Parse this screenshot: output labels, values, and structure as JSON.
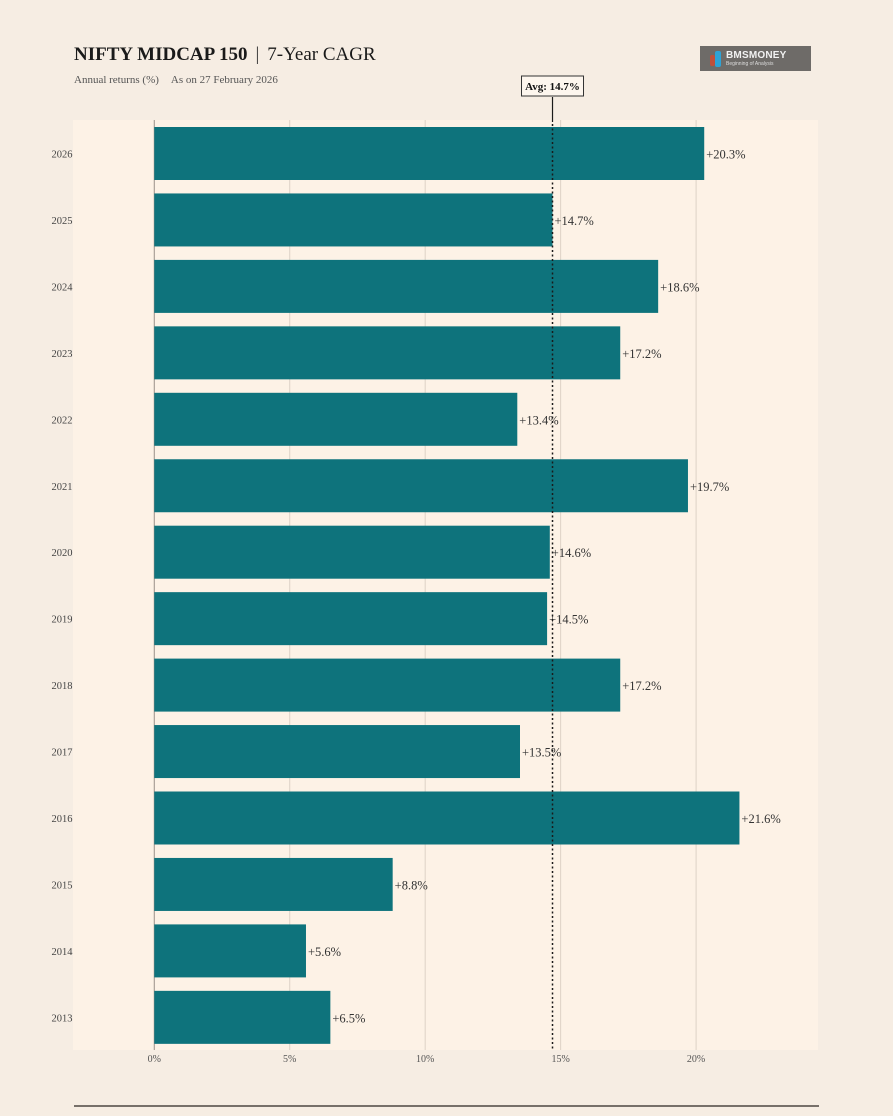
{
  "header": {
    "title_bold": "NIFTY MIDCAP 150",
    "title_separator": "|",
    "title_rest": "7-Year CAGR",
    "subtitle_left": "Annual returns (%)",
    "subtitle_right": "As on 27 February 2026"
  },
  "logo": {
    "name": "BMSMONEY",
    "tagline": "Beginning of Analysis"
  },
  "colors": {
    "bar": "#0e737c",
    "plot_bg": "#fdf2e6",
    "page_bg": "#f6ede3",
    "grid": "#ddd2c6",
    "avg_line": "#1a1a1a"
  },
  "chart_data": {
    "type": "bar",
    "orientation": "horizontal",
    "title": "NIFTY MIDCAP 150 | 7-Year CAGR",
    "subtitle": "Annual returns (%)  As on 27 February 2026",
    "xlabel": "",
    "ylabel": "",
    "categories": [
      "2026",
      "2025",
      "2024",
      "2023",
      "2022",
      "2021",
      "2020",
      "2019",
      "2018",
      "2017",
      "2016",
      "2015",
      "2014",
      "2013"
    ],
    "values": [
      20.3,
      14.7,
      18.6,
      17.2,
      13.4,
      19.7,
      14.6,
      14.5,
      17.2,
      13.5,
      21.6,
      8.8,
      5.6,
      6.5
    ],
    "data_labels": [
      "+20.3%",
      "+14.7%",
      "+18.6%",
      "+17.2%",
      "+13.4%",
      "+19.7%",
      "+14.6%",
      "+14.5%",
      "+17.2%",
      "+13.5%",
      "+21.6%",
      "+8.8%",
      "+5.6%",
      "+6.5%"
    ],
    "xlim": [
      -3.0,
      24.5
    ],
    "x_ticks": [
      0,
      5,
      10,
      15,
      20
    ],
    "x_tick_labels": [
      "0%",
      "5%",
      "10%",
      "15%",
      "20%"
    ],
    "grid": true,
    "reference_line": {
      "value": 14.7,
      "label": "Avg: 14.7%",
      "style": "dotted"
    },
    "legend": "none"
  }
}
